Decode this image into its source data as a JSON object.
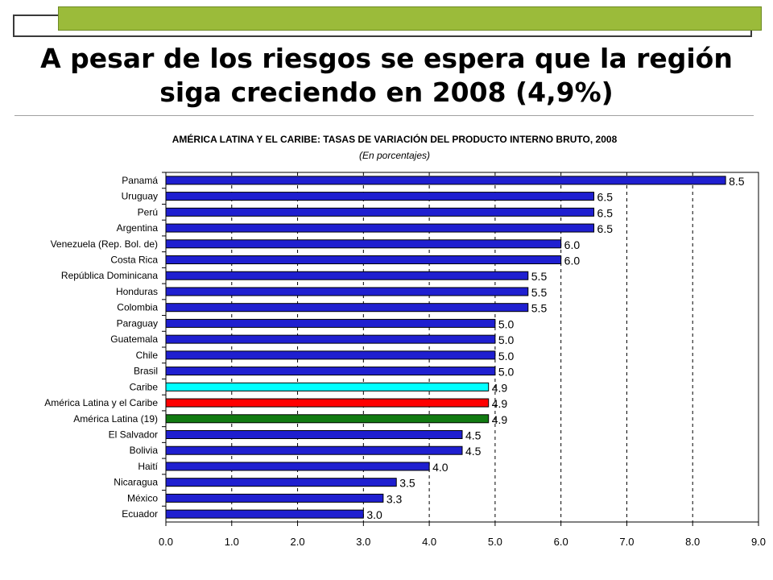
{
  "slide": {
    "title": "A pesar de los riesgos se espera que la región siga creciendo en 2008 (4,9%)"
  },
  "chart_data": {
    "type": "bar",
    "orientation": "horizontal",
    "title": "AMÉRICA LATINA Y EL CARIBE: TASAS DE VARIACIÓN DEL PRODUCTO INTERNO BRUTO, 2008",
    "subtitle": "(En porcentajes)",
    "xlabel": "",
    "ylabel": "",
    "xlim": [
      0,
      9
    ],
    "x_ticks": [
      "0.0",
      "1.0",
      "2.0",
      "3.0",
      "4.0",
      "5.0",
      "6.0",
      "7.0",
      "8.0",
      "9.0"
    ],
    "grid": "vertical dashed",
    "legend": "none",
    "categories": [
      "Panamá",
      "Uruguay",
      "Perú",
      "Argentina",
      "Venezuela (Rep. Bol. de)",
      "Costa Rica",
      "República Dominicana",
      "Honduras",
      "Colombia",
      "Paraguay",
      "Guatemala",
      "Chile",
      "Brasil",
      "Caribe",
      "América Latina y el Caribe",
      "América Latina (19)",
      "El Salvador",
      "Bolivia",
      "Haití",
      "Nicaragua",
      "México",
      "Ecuador"
    ],
    "values": [
      8.5,
      6.5,
      6.5,
      6.5,
      6.0,
      6.0,
      5.5,
      5.5,
      5.5,
      5.0,
      5.0,
      5.0,
      5.0,
      4.9,
      4.9,
      4.9,
      4.5,
      4.5,
      4.0,
      3.5,
      3.3,
      3.0
    ],
    "value_labels": [
      "8.5",
      "6.5",
      "6.5",
      "6.5",
      "6.0",
      "6.0",
      "5.5",
      "5.5",
      "5.5",
      "5.0",
      "5.0",
      "5.0",
      "5.0",
      "4.9",
      "4.9",
      "4.9",
      "4.5",
      "4.5",
      "4.0",
      "3.5",
      "3.3",
      "3.0"
    ],
    "bar_colors": [
      "#1f1fd0",
      "#1f1fd0",
      "#1f1fd0",
      "#1f1fd0",
      "#1f1fd0",
      "#1f1fd0",
      "#1f1fd0",
      "#1f1fd0",
      "#1f1fd0",
      "#1f1fd0",
      "#1f1fd0",
      "#1f1fd0",
      "#1f1fd0",
      "#00ffff",
      "#ff0000",
      "#117a11",
      "#1f1fd0",
      "#1f1fd0",
      "#1f1fd0",
      "#1f1fd0",
      "#1f1fd0",
      "#1f1fd0"
    ],
    "bar_edge_color": "#000000"
  },
  "colors": {
    "header_bar": "#9bbb3a",
    "header_border": "#3a3a3a",
    "gridline": "#000000"
  }
}
